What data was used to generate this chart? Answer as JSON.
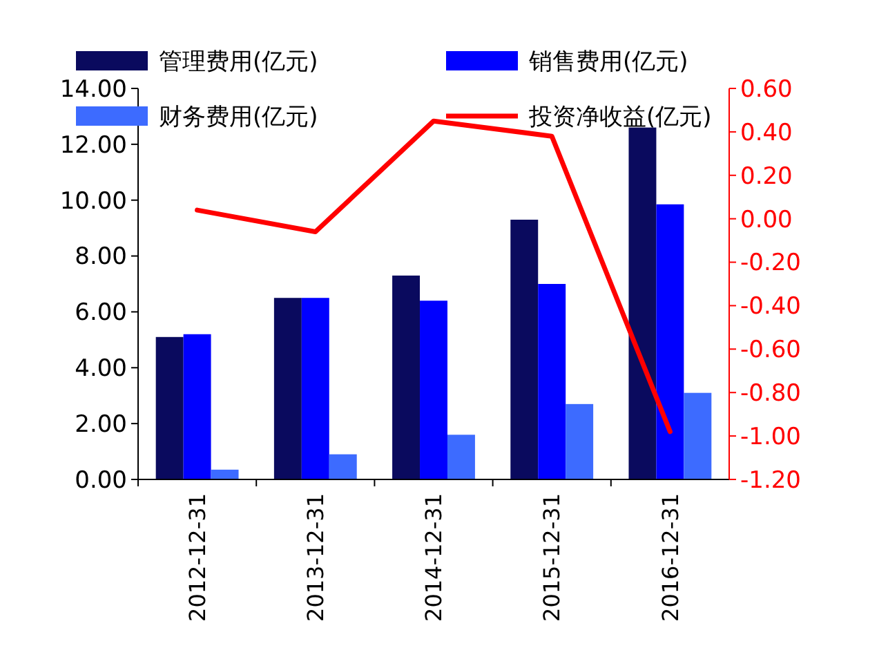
{
  "chart_data": {
    "type": "bar",
    "categories": [
      "2012-12-31",
      "2013-12-31",
      "2014-12-31",
      "2015-12-31",
      "2016-12-31"
    ],
    "series": [
      {
        "name": "管理费用(亿元)",
        "color": "#0a0a5e",
        "values": [
          5.1,
          6.5,
          7.3,
          9.3,
          12.6
        ]
      },
      {
        "name": "销售费用(亿元)",
        "color": "#0000ff",
        "values": [
          5.2,
          6.5,
          6.4,
          7.0,
          9.85
        ]
      },
      {
        "name": "财务费用(亿元)",
        "color": "#3d6bff",
        "values": [
          0.35,
          0.9,
          1.6,
          2.7,
          3.1
        ]
      },
      {
        "name": "投资净收益(亿元)",
        "type": "line",
        "axis": "y2",
        "color": "#ff0000",
        "values": [
          0.04,
          -0.06,
          0.45,
          0.38,
          -0.98
        ]
      }
    ],
    "ylim": [
      0,
      14
    ],
    "yticks": [
      {
        "value": 0,
        "label": "0.00"
      },
      {
        "value": 2,
        "label": "2.00"
      },
      {
        "value": 4,
        "label": "4.00"
      },
      {
        "value": 6,
        "label": "6.00"
      },
      {
        "value": 8,
        "label": "8.00"
      },
      {
        "value": 10,
        "label": "10.00"
      },
      {
        "value": 12,
        "label": "12.00"
      },
      {
        "value": 14,
        "label": "14.00"
      }
    ],
    "y2lim": [
      -1.2,
      0.6
    ],
    "y2ticks": [
      {
        "value": -1.2,
        "label": "-1.20"
      },
      {
        "value": -1,
        "label": "-1.00"
      },
      {
        "value": -0.8,
        "label": "-0.80"
      },
      {
        "value": -0.6,
        "label": "-0.60"
      },
      {
        "value": -0.4,
        "label": "-0.40"
      },
      {
        "value": -0.2,
        "label": "-0.20"
      },
      {
        "value": 0,
        "label": "0.00"
      },
      {
        "value": 0.2,
        "label": "0.20"
      },
      {
        "value": 0.4,
        "label": "0.40"
      },
      {
        "value": 0.6,
        "label": "0.60"
      }
    ],
    "legend": "top",
    "grid": false
  }
}
